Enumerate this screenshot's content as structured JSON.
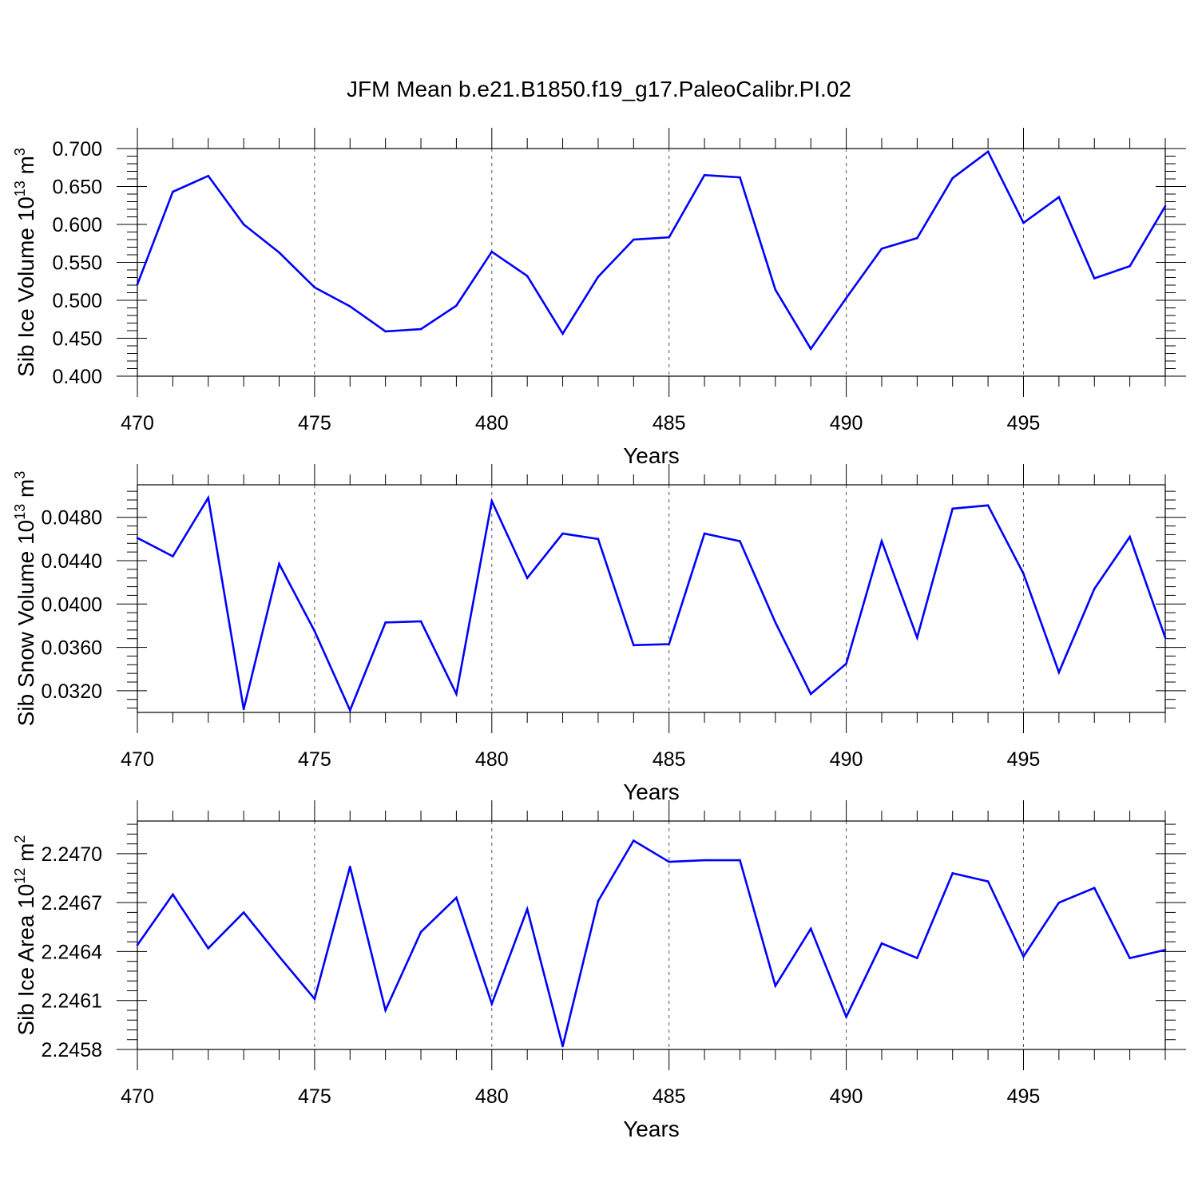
{
  "title": "JFM Mean b.e21.B1850.f19_g17.PaleoCalibr.PI.02",
  "line_color": "#0000ff",
  "chart_data": [
    {
      "type": "line",
      "title": "JFM Mean b.e21.B1850.f19_g17.PaleoCalibr.PI.02",
      "xlabel": "Years",
      "ylabel": "Sib Ice Volume 10",
      "ylabel_exp": "13",
      "ylabel_unit": " m",
      "ylabel_unit_exp": "3",
      "xlim": [
        470,
        499
      ],
      "ylim": [
        0.4,
        0.7
      ],
      "xticks": [
        470,
        475,
        480,
        485,
        490,
        495
      ],
      "yticks": [
        "0.400",
        "0.450",
        "0.500",
        "0.550",
        "0.600",
        "0.650",
        "0.700"
      ],
      "grid": "vertical-dashed",
      "x": [
        470,
        471,
        472,
        473,
        474,
        475,
        476,
        477,
        478,
        479,
        480,
        481,
        482,
        483,
        484,
        485,
        486,
        487,
        488,
        489,
        490,
        491,
        492,
        493,
        494,
        495,
        496,
        497,
        498,
        499
      ],
      "series": [
        {
          "values": [
            0.521,
            0.643,
            0.664,
            0.6,
            0.563,
            0.517,
            0.492,
            0.459,
            0.462,
            0.493,
            0.564,
            0.532,
            0.456,
            0.531,
            0.58,
            0.583,
            0.665,
            0.662,
            0.514,
            0.436,
            0.503,
            0.568,
            0.582,
            0.661,
            0.696,
            0.602,
            0.636,
            0.529,
            0.545,
            0.624
          ]
        }
      ]
    },
    {
      "type": "line",
      "xlabel": "Years",
      "ylabel": "Sib Snow Volume 10",
      "ylabel_exp": "13",
      "ylabel_unit": " m",
      "ylabel_unit_exp": "3",
      "xlim": [
        470,
        499
      ],
      "ylim": [
        0.03,
        0.051
      ],
      "xticks": [
        470,
        475,
        480,
        485,
        490,
        495
      ],
      "yticks": [
        "0.0320",
        "0.0360",
        "0.0400",
        "0.0440",
        "0.0480"
      ],
      "grid": "vertical-dashed",
      "x": [
        470,
        471,
        472,
        473,
        474,
        475,
        476,
        477,
        478,
        479,
        480,
        481,
        482,
        483,
        484,
        485,
        486,
        487,
        488,
        489,
        490,
        491,
        492,
        493,
        494,
        495,
        496,
        497,
        498,
        499
      ],
      "series": [
        {
          "values": [
            0.0461,
            0.0444,
            0.0498,
            0.0303,
            0.0437,
            0.0375,
            0.0302,
            0.0383,
            0.0384,
            0.0317,
            0.0495,
            0.0424,
            0.0465,
            0.046,
            0.0362,
            0.0363,
            0.0465,
            0.0458,
            0.0383,
            0.0317,
            0.0345,
            0.0458,
            0.0369,
            0.0488,
            0.0491,
            0.0428,
            0.0337,
            0.0414,
            0.0462,
            0.0369
          ]
        }
      ]
    },
    {
      "type": "line",
      "xlabel": "Years",
      "ylabel": "Sib Ice Area 10",
      "ylabel_exp": "12",
      "ylabel_unit": " m",
      "ylabel_unit_exp": "2",
      "xlim": [
        470,
        499
      ],
      "ylim": [
        2.2458,
        2.2472
      ],
      "xticks": [
        470,
        475,
        480,
        485,
        490,
        495
      ],
      "yticks": [
        "2.2458",
        "2.2461",
        "2.2464",
        "2.2467",
        "2.2470"
      ],
      "grid": "vertical-dashed",
      "x": [
        470,
        471,
        472,
        473,
        474,
        475,
        476,
        477,
        478,
        479,
        480,
        481,
        482,
        483,
        484,
        485,
        486,
        487,
        488,
        489,
        490,
        491,
        492,
        493,
        494,
        495,
        496,
        497,
        498,
        499
      ],
      "series": [
        {
          "values": [
            2.24644,
            2.24675,
            2.24642,
            2.24664,
            2.24637,
            2.24611,
            2.24692,
            2.24604,
            2.24652,
            2.24673,
            2.24608,
            2.24666,
            2.24582,
            2.24671,
            2.24708,
            2.24695,
            2.24696,
            2.24696,
            2.24619,
            2.24654,
            2.246,
            2.24645,
            2.24636,
            2.24688,
            2.24683,
            2.24637,
            2.2467,
            2.24679,
            2.24636,
            2.24641
          ]
        }
      ]
    }
  ]
}
